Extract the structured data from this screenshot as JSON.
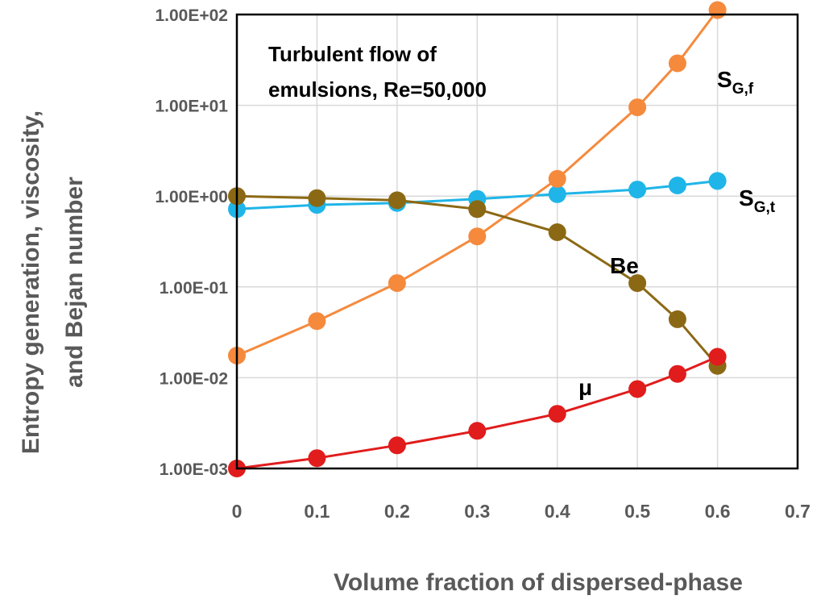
{
  "chart_data": {
    "type": "line",
    "title": "",
    "annotation_lines": [
      "Turbulent flow of",
      "emulsions, Re=50,000"
    ],
    "xlabel": "Volume fraction of dispersed-phase",
    "ylabel_lines": [
      "Entropy generation, viscosity,",
      "and Bejan number"
    ],
    "xlim": [
      0,
      0.7
    ],
    "ylim": [
      0.001,
      100
    ],
    "yscale": "log",
    "grid": true,
    "x_ticks": [
      "0",
      "0.1",
      "0.2",
      "0.3",
      "0.4",
      "0.5",
      "0.6",
      "0.7"
    ],
    "y_ticks": [
      "1.00E-03",
      "1.00E-02",
      "1.00E-01",
      "1.00E+00",
      "1.00E+01",
      "1.00E+02"
    ],
    "x": [
      0,
      0.1,
      0.2,
      0.3,
      0.4,
      0.5,
      0.55,
      0.6
    ],
    "series": [
      {
        "name": "S",
        "sub": "G,t",
        "color": "#1fb5e8",
        "values": [
          0.72,
          0.8,
          0.84,
          0.93,
          1.05,
          1.18,
          1.31,
          1.47
        ]
      },
      {
        "name": "S",
        "sub": "G,f",
        "color": "#f58a3d",
        "values": [
          0.0175,
          0.042,
          0.11,
          0.36,
          1.55,
          9.5,
          29,
          112
        ]
      },
      {
        "name": "Be",
        "sub": "",
        "color": "#8b6914",
        "values": [
          1.0,
          0.95,
          0.9,
          0.72,
          0.4,
          0.11,
          0.044,
          0.0135
        ]
      },
      {
        "name": "μ",
        "sub": "",
        "color": "#e11c1c",
        "values": [
          0.001,
          0.0013,
          0.0018,
          0.0026,
          0.004,
          0.0075,
          0.011,
          0.017
        ]
      }
    ]
  }
}
